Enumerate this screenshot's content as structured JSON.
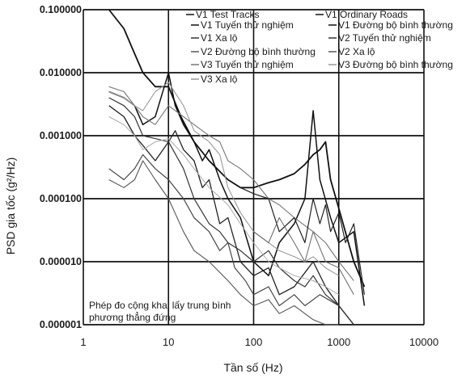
{
  "chart_data": {
    "type": "line",
    "xscale": "log",
    "yscale": "log",
    "xlim": [
      1,
      10000
    ],
    "ylim": [
      1e-06,
      0.1
    ],
    "xticks": [
      "1",
      "10",
      "100",
      "1000",
      "10000"
    ],
    "yticks": [
      "0.000001",
      "0.000010",
      "0.000100",
      "0.001000",
      "0.010000",
      "0.100000"
    ],
    "xlabel": "Tần số (Hz)",
    "ylabel": "PSD gia tốc (g²/Hz)",
    "grid": true,
    "legend_position": "top-right",
    "legend": [
      {
        "label": "V1 Test Tracks",
        "color": "#111111"
      },
      {
        "label": "V1 Ordinary Roads",
        "color": "#111111"
      },
      {
        "label": "V1 Tuyến thử nghiệm",
        "color": "#111111"
      },
      {
        "label": "V1 Đường bộ bình thường",
        "color": "#111111"
      },
      {
        "label": "V1 Xa lộ",
        "color": "#333333"
      },
      {
        "label": "V2 Tuyến thử nghiệm",
        "color": "#333333"
      },
      {
        "label": "V2 Đường bộ bình thường",
        "color": "#555555"
      },
      {
        "label": "V2 Xa lộ",
        "color": "#555555"
      },
      {
        "label": "V3 Tuyến thử nghiệm",
        "color": "#777777"
      },
      {
        "label": "V3 Đường bộ bình thường",
        "color": "#999999"
      },
      {
        "label": "V3 Xa lộ",
        "color": "#999999"
      }
    ],
    "annotation": "Phép đo cộng  khai lấy trung bình phương thẳng đứng",
    "series": [
      {
        "color": "#111111",
        "width": 1.8,
        "x": [
          2,
          3,
          4,
          5,
          7,
          10,
          14,
          20,
          30,
          50,
          70,
          100,
          150,
          200,
          300,
          400,
          500,
          600,
          700,
          800,
          1000,
          1500,
          2000
        ],
        "y": [
          0.1,
          0.05,
          0.02,
          0.01,
          0.006,
          0.006,
          0.002,
          0.0008,
          0.0004,
          0.0002,
          0.00015,
          0.00015,
          0.00018,
          0.0002,
          0.00025,
          0.00035,
          0.0005,
          0.0006,
          0.0008,
          0.0002,
          7e-05,
          1e-05,
          4e-06
        ]
      },
      {
        "color": "#111111",
        "width": 1.5,
        "x": [
          2,
          3,
          4,
          5,
          7,
          10,
          12,
          15,
          20,
          25,
          30,
          40,
          50,
          70,
          100,
          150,
          200,
          300,
          400,
          500,
          600,
          800,
          1000,
          1500,
          2000
        ],
        "y": [
          0.005,
          0.004,
          0.003,
          0.0015,
          0.002,
          0.01,
          0.003,
          0.0015,
          0.0008,
          0.0004,
          0.0006,
          0.0002,
          0.0001,
          5e-05,
          1e-05,
          6e-06,
          2e-05,
          4e-05,
          0.0001,
          0.0025,
          0.0002,
          5e-05,
          2e-05,
          3e-05,
          2e-06
        ]
      },
      {
        "color": "#222222",
        "width": 1.3,
        "x": [
          2,
          3,
          4,
          5,
          7,
          10,
          12,
          15,
          20,
          25,
          30,
          40,
          50,
          70,
          100,
          150,
          200,
          300,
          500,
          700,
          1000,
          1500
        ],
        "y": [
          0.003,
          0.002,
          0.001,
          0.0007,
          0.0004,
          0.0008,
          0.0012,
          0.0006,
          0.0004,
          0.00015,
          0.0002,
          4e-05,
          5e-05,
          1e-05,
          6e-06,
          8e-06,
          3e-06,
          4e-06,
          1e-05,
          4e-06,
          2e-06,
          1e-06
        ]
      },
      {
        "color": "#444444",
        "width": 1.2,
        "x": [
          2,
          3,
          4,
          5,
          7,
          10,
          15,
          20,
          30,
          40,
          50,
          60,
          80,
          100,
          150,
          200,
          300,
          400,
          600,
          1000,
          1500
        ],
        "y": [
          0.0003,
          0.0002,
          0.0003,
          0.0005,
          0.0003,
          0.0002,
          0.0001,
          5e-05,
          3e-05,
          1.5e-05,
          2e-05,
          8e-06,
          5e-06,
          3e-06,
          4e-06,
          2e-06,
          3e-06,
          2e-06,
          3e-06,
          2e-06,
          1e-06
        ]
      },
      {
        "color": "#333333",
        "width": 1.2,
        "x": [
          2,
          3,
          4,
          5,
          7,
          10,
          15,
          20,
          30,
          40,
          50,
          70,
          100,
          150,
          200,
          300,
          400,
          500,
          700,
          1000,
          1500
        ],
        "y": [
          0.004,
          0.003,
          0.002,
          0.001,
          0.0009,
          0.0008,
          0.0003,
          0.0001,
          4e-05,
          3e-05,
          2e-05,
          1.5e-05,
          1e-05,
          1.5e-05,
          8e-06,
          5e-06,
          4e-06,
          6e-06,
          3e-06,
          2e-06,
          1e-06
        ]
      },
      {
        "color": "#555555",
        "width": 1.1,
        "x": [
          2,
          3,
          4,
          5,
          7,
          10,
          15,
          20,
          30,
          50,
          70,
          100,
          150,
          200,
          300,
          400,
          500,
          700,
          1000
        ],
        "y": [
          0.0002,
          0.00015,
          0.0002,
          0.0004,
          0.0002,
          0.0001,
          3e-05,
          1.5e-05,
          1e-05,
          5e-06,
          3e-06,
          2e-06,
          2.5e-06,
          1.5e-06,
          2e-06,
          1.5e-06,
          1.2e-06,
          1e-06,
          1e-06
        ]
      },
      {
        "color": "#777777",
        "width": 1.1,
        "x": [
          2,
          3,
          4,
          5,
          7,
          10,
          15,
          20,
          30,
          40,
          50,
          70,
          100,
          150,
          200,
          300,
          500,
          700,
          1000,
          1500
        ],
        "y": [
          0.006,
          0.005,
          0.003,
          0.002,
          0.0015,
          0.003,
          0.002,
          0.0015,
          0.001,
          0.0008,
          0.0004,
          0.0003,
          0.0002,
          0.0001,
          8e-05,
          5e-05,
          3e-05,
          2e-05,
          1e-05,
          5e-06
        ]
      },
      {
        "color": "#999999",
        "width": 1.1,
        "x": [
          2,
          3,
          4,
          5,
          7,
          10,
          15,
          20,
          30,
          40,
          50,
          70,
          100,
          150,
          200,
          300,
          400,
          500,
          700,
          1000
        ],
        "y": [
          0.005,
          0.004,
          0.003,
          0.0025,
          0.005,
          0.007,
          0.003,
          0.0012,
          0.0008,
          0.0005,
          0.00015,
          6e-05,
          3e-05,
          2e-05,
          1.5e-05,
          1.2e-05,
          1e-05,
          1.2e-05,
          8e-06,
          6e-06
        ]
      },
      {
        "color": "#aaaaaa",
        "width": 1.0,
        "x": [
          2,
          3,
          4,
          5,
          7,
          10,
          15,
          20,
          30,
          50,
          70,
          100,
          150,
          200,
          300,
          500,
          700,
          1000
        ],
        "y": [
          0.002,
          0.0015,
          0.001,
          0.0006,
          0.0008,
          0.0009,
          0.0005,
          0.0003,
          0.00015,
          8e-05,
          4e-05,
          2e-05,
          1e-05,
          8e-06,
          6e-06,
          5e-06,
          4e-06,
          3e-06
        ]
      },
      {
        "color": "#222222",
        "width": 1.2,
        "x": [
          70,
          100,
          150,
          200,
          300,
          400,
          500,
          600,
          700,
          800,
          1000,
          1200,
          1500,
          2000
        ],
        "y": [
          0.00015,
          0.00012,
          0.0001,
          3e-05,
          5e-05,
          2e-05,
          0.0001,
          4e-05,
          8e-05,
          3e-05,
          6e-05,
          2e-05,
          4e-05,
          3e-06
        ]
      },
      {
        "color": "#666666",
        "width": 1.0,
        "x": [
          100,
          150,
          200,
          300,
          400,
          500,
          700,
          1000,
          1500
        ],
        "y": [
          3e-05,
          2e-05,
          5e-05,
          2e-05,
          1e-05,
          3e-05,
          1e-05,
          8e-06,
          3e-06
        ]
      }
    ]
  }
}
